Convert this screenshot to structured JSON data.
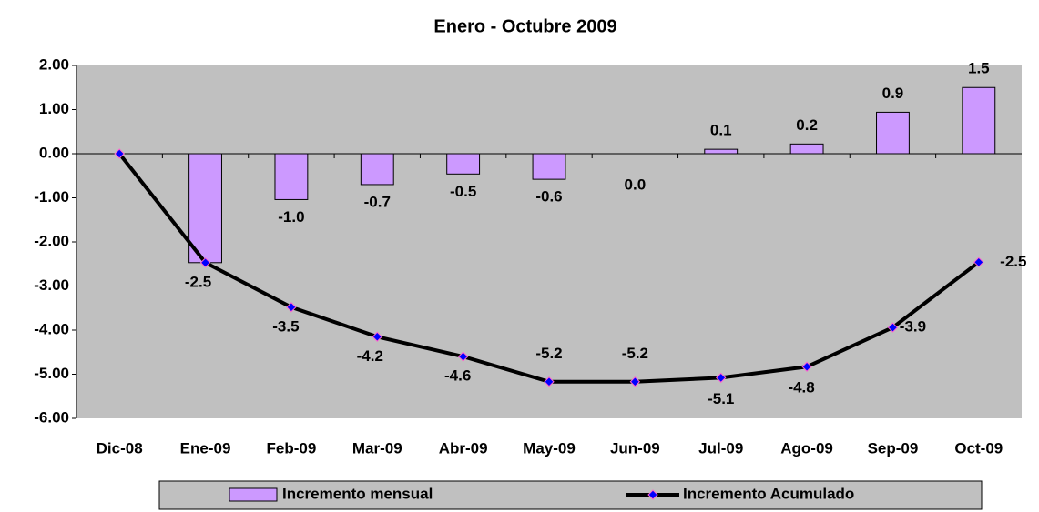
{
  "chart_data": {
    "type": "bar-line",
    "title": "Enero - Octubre 2009",
    "categories": [
      "Dic-08",
      "Ene-09",
      "Feb-09",
      "Mar-09",
      "Abr-09",
      "May-09",
      "Jun-09",
      "Jul-09",
      "Ago-09",
      "Sep-09",
      "Oct-09"
    ],
    "series": [
      {
        "name": "Incremento mensual",
        "type": "bar",
        "color": "#cc99ff",
        "values": [
          null,
          -2.47,
          -1.04,
          -0.7,
          -0.46,
          -0.58,
          0,
          0.1,
          0.22,
          0.94,
          1.5
        ],
        "value_labels": [
          null,
          null,
          "-1.0",
          "-0.7",
          "-0.5",
          "-0.6",
          "0.0",
          "0.1",
          "0.2",
          "0.9",
          "1.5"
        ]
      },
      {
        "name": "Incremento Acumulado",
        "type": "line",
        "color": "#000000",
        "values": [
          0,
          -2.47,
          -3.48,
          -4.15,
          -4.6,
          -5.17,
          -5.17,
          -5.08,
          -4.83,
          -3.94,
          -2.46
        ],
        "value_labels": [
          null,
          "-2.5",
          "-3.5",
          "-4.2",
          "-4.6",
          "-5.2",
          "-5.2",
          "-5.1",
          "-4.8",
          "-3.9",
          "-2.5"
        ]
      }
    ],
    "ylim": [
      -6,
      2
    ],
    "yticks": [
      {
        "value": -6,
        "label": "-6.00"
      },
      {
        "value": -5,
        "label": "-5.00"
      },
      {
        "value": -4,
        "label": "-4.00"
      },
      {
        "value": -3,
        "label": "-3.00"
      },
      {
        "value": -2,
        "label": "-2.00"
      },
      {
        "value": -1,
        "label": "-1.00"
      },
      {
        "value": 0,
        "label": "0.00"
      },
      {
        "value": 1,
        "label": "1.00"
      },
      {
        "value": 2,
        "label": "2.00"
      }
    ],
    "grid": false,
    "legend": "bottom"
  }
}
